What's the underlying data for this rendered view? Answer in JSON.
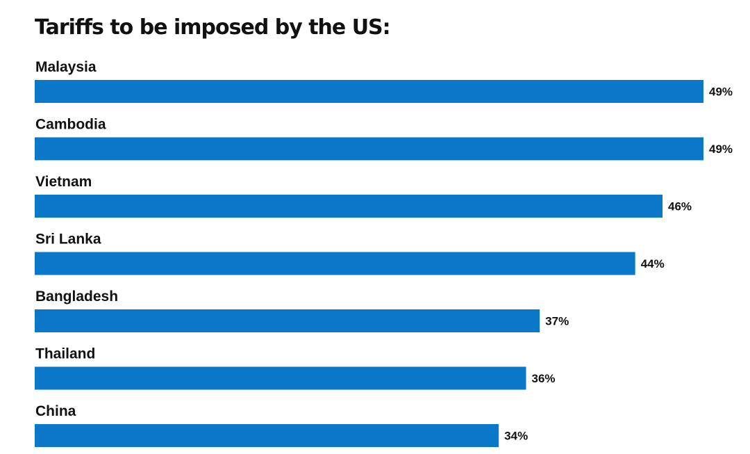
{
  "chart_data": {
    "type": "bar",
    "orientation": "horizontal",
    "title": "Tariffs to be imposed by the US:",
    "categories": [
      "Malaysia",
      "Cambodia",
      "Vietnam",
      "Sri Lanka",
      "Bangladesh",
      "Thailand",
      "China"
    ],
    "values": [
      49,
      49,
      46,
      44,
      37,
      36,
      34
    ],
    "value_labels": [
      "49%",
      "49%",
      "46%",
      "44%",
      "37%",
      "36%",
      "34%"
    ],
    "unit": "%",
    "xlim": [
      0,
      49
    ],
    "grid": false,
    "legend": "none",
    "bar_color": "#0a77c9"
  }
}
